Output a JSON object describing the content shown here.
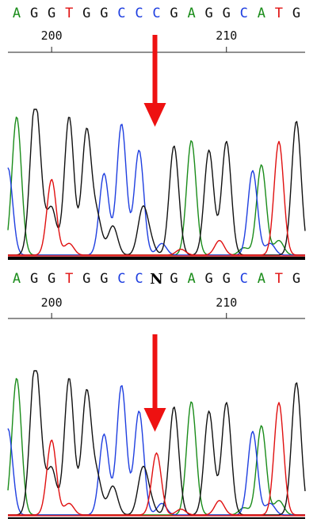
{
  "colors": {
    "A": "#1a8c1a",
    "C": "#1f3fe0",
    "G": "#111111",
    "T": "#e01010",
    "N": "#000000",
    "arrow": "#ee1111"
  },
  "chart_data": [
    {
      "type": "line",
      "title": "",
      "xlabel": "",
      "ylabel": "",
      "x_range": [
        197.5,
        214.5
      ],
      "ticks": [
        {
          "value": 200,
          "label": "200"
        },
        {
          "value": 210,
          "label": "210"
        }
      ],
      "sequence": [
        "A",
        "G",
        "G",
        "T",
        "G",
        "G",
        "C",
        "C",
        "C",
        "G",
        "A",
        "G",
        "G",
        "C",
        "A",
        "T",
        "G"
      ],
      "arrow_at": 206,
      "series": [
        {
          "name": "A",
          "peaks": [
            [
              198,
              0.95
            ],
            [
              207.9,
              0.05
            ],
            [
              208,
              0.74
            ],
            [
              211,
              0.05
            ],
            [
              212,
              0.62
            ],
            [
              213,
              0.1
            ]
          ]
        },
        {
          "name": "C",
          "peaks": [
            [
              197.5,
              0.6
            ],
            [
              203,
              0.56
            ],
            [
              204,
              0.9
            ],
            [
              205,
              0.72
            ],
            [
              206.3,
              0.08
            ],
            [
              211.5,
              0.58
            ],
            [
              212.5,
              0.08
            ]
          ]
        },
        {
          "name": "G",
          "peaks": [
            [
              199,
              0.85
            ],
            [
              199.3,
              0.35
            ],
            [
              200,
              0.32
            ],
            [
              201,
              0.95
            ],
            [
              202,
              0.85
            ],
            [
              202.6,
              0.25
            ],
            [
              203.5,
              0.2
            ],
            [
              205.2,
              0.3
            ],
            [
              205.6,
              0.1
            ],
            [
              207,
              0.75
            ],
            [
              209,
              0.72
            ],
            [
              210,
              0.78
            ],
            [
              214,
              0.92
            ]
          ]
        },
        {
          "name": "T",
          "peaks": [
            [
              200,
              0.52
            ],
            [
              201,
              0.08
            ],
            [
              207.4,
              0.04
            ],
            [
              209.6,
              0.1
            ],
            [
              213,
              0.78
            ]
          ]
        }
      ]
    },
    {
      "type": "line",
      "title": "",
      "xlabel": "",
      "ylabel": "",
      "x_range": [
        197.5,
        214.5
      ],
      "ticks": [
        {
          "value": 200,
          "label": "200"
        },
        {
          "value": 210,
          "label": "210"
        }
      ],
      "sequence": [
        "A",
        "G",
        "G",
        "T",
        "G",
        "G",
        "C",
        "C",
        "N",
        "G",
        "A",
        "G",
        "G",
        "C",
        "A",
        "T",
        "G"
      ],
      "arrow_at": 206,
      "series": [
        {
          "name": "A",
          "peaks": [
            [
              198,
              0.95
            ],
            [
              207.9,
              0.05
            ],
            [
              208,
              0.74
            ],
            [
              211,
              0.05
            ],
            [
              212,
              0.62
            ],
            [
              213,
              0.1
            ]
          ]
        },
        {
          "name": "C",
          "peaks": [
            [
              197.5,
              0.6
            ],
            [
              203,
              0.56
            ],
            [
              204,
              0.9
            ],
            [
              205,
              0.72
            ],
            [
              206.3,
              0.08
            ],
            [
              211.5,
              0.58
            ],
            [
              212.5,
              0.08
            ]
          ]
        },
        {
          "name": "G",
          "peaks": [
            [
              199,
              0.85
            ],
            [
              199.3,
              0.35
            ],
            [
              200,
              0.32
            ],
            [
              201,
              0.95
            ],
            [
              202,
              0.85
            ],
            [
              202.6,
              0.25
            ],
            [
              203.5,
              0.2
            ],
            [
              205.2,
              0.3
            ],
            [
              205.6,
              0.1
            ],
            [
              207,
              0.75
            ],
            [
              209,
              0.72
            ],
            [
              210,
              0.78
            ],
            [
              214,
              0.92
            ]
          ]
        },
        {
          "name": "T",
          "peaks": [
            [
              200,
              0.52
            ],
            [
              201,
              0.08
            ],
            [
              206,
              0.43
            ],
            [
              207.4,
              0.04
            ],
            [
              209.6,
              0.1
            ],
            [
              213,
              0.78
            ]
          ]
        }
      ]
    }
  ]
}
